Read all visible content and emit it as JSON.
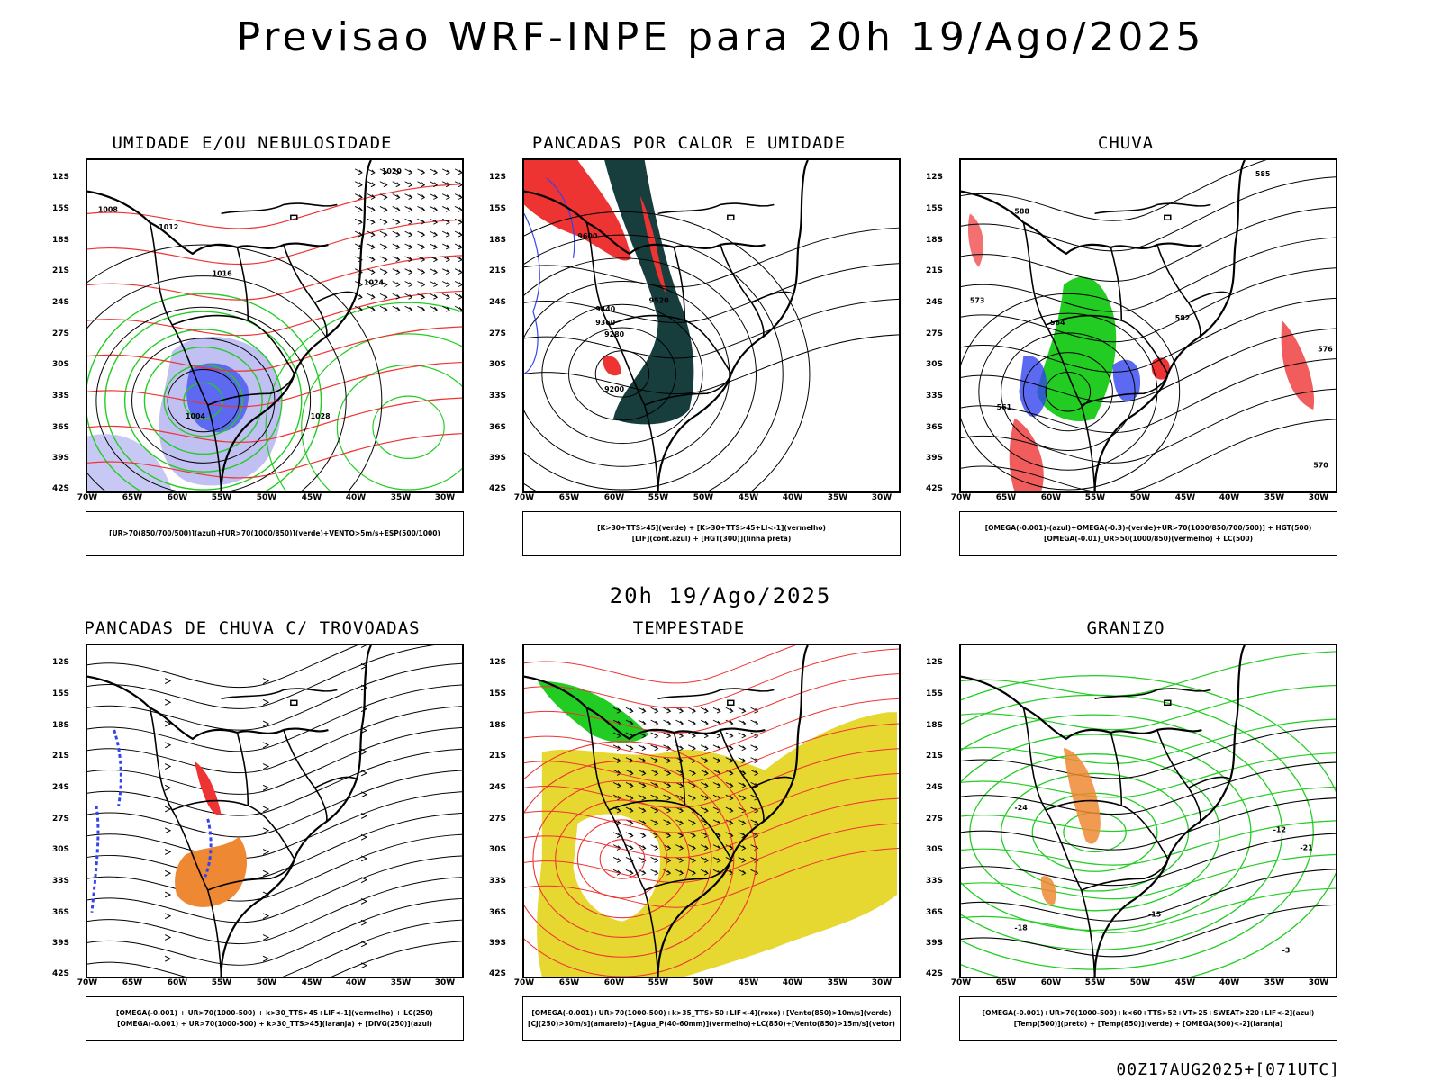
{
  "header": {
    "title": "Previsao WRF-INPE  para 20h 19/Ago/2025",
    "mid_title": "20h 19/Ago/2025",
    "footer": "00Z17AUG2025+[071UTC]"
  },
  "axes": {
    "lat_labels": [
      "12S",
      "15S",
      "18S",
      "21S",
      "24S",
      "27S",
      "30S",
      "33S",
      "36S",
      "39S",
      "42S"
    ],
    "lon_labels": [
      "70W",
      "65W",
      "60W",
      "55W",
      "50W",
      "45W",
      "40W",
      "35W",
      "30W"
    ]
  },
  "colors": {
    "blue": "#3344ee",
    "lightblue": "#b0b0f0",
    "green": "#22cc22",
    "red": "#ee3333",
    "darkteal": "#173d3d",
    "orange": "#ee8833",
    "yellow": "#e6d830",
    "black": "#000000"
  },
  "panels": [
    {
      "title": "UMIDADE E/OU NEBULOSIDADE",
      "legend": [
        "[UR>70(850/700/500)](azul)+[UR>70(1000/850)](verde)+VENTO>5m/s+ESP(500/1000)"
      ],
      "contour_labels": [
        "1008",
        "1012",
        "1016",
        "1020",
        "1024",
        "1028",
        "1004"
      ]
    },
    {
      "title": "PANCADAS POR CALOR E UMIDADE",
      "legend": [
        "[K>30+TTS>45](verde)  +  [K>30+TTS>45+LI<-1](vermelho)",
        "[LIF](cont.azul)  +  [HGT(300)](linha preta)"
      ],
      "contour_labels": [
        "9520",
        "9600",
        "9440",
        "9360",
        "9280",
        "9200"
      ]
    },
    {
      "title": "CHUVA",
      "legend": [
        "[OMEGA(-0.001)-(azul)+OMEGA(-0.3)-(verde)+UR>70(1000/850/700/500)]  +  HGT(500)",
        "[OMEGA(-0.01)_UR>50(1000/850)(vermelho)  +  LC(500)"
      ],
      "contour_labels": [
        "585",
        "588",
        "573",
        "576",
        "564",
        "561",
        "570",
        "582"
      ]
    },
    {
      "title": "PANCADAS DE CHUVA C/ TROVOADAS",
      "legend": [
        "[OMEGA(-0.001)  +  UR>70(1000-500)  +  k>30_TTS>45+LIF<-1](vermelho)  +  LC(250)",
        "[OMEGA(-0.001)  +  UR>70(1000-500)  +  k>30_TTS>45](laranja)  +  [DIVG(250)](azul)"
      ],
      "contour_labels": []
    },
    {
      "title": "TEMPESTADE",
      "legend": [
        "[OMEGA(-0.001)+UR>70(1000-500)+k>35_TTS>50+LIF<-4](roxo)+[Vento(850)>10m/s](verde)",
        "[CJ(250)>30m/s](amarelo)+[Agua_P(40-60mm)](vermelho)+LC(850)+[Vento(850)>15m/s](vetor)"
      ],
      "contour_labels": []
    },
    {
      "title": "GRANIZO",
      "legend": [
        "[OMEGA(-0.001)+UR>70(1000-500)+k<60+TTS>52+VT>25+SWEAT>220+LIF<-2](azul)",
        "[Temp(500)](preto)  +  [Temp(850)](verde)  +  [OMEGA(500)<-2](laranja)"
      ],
      "contour_labels": [
        "-12",
        "-15",
        "-18",
        "-21",
        "-24",
        "-3"
      ]
    }
  ]
}
